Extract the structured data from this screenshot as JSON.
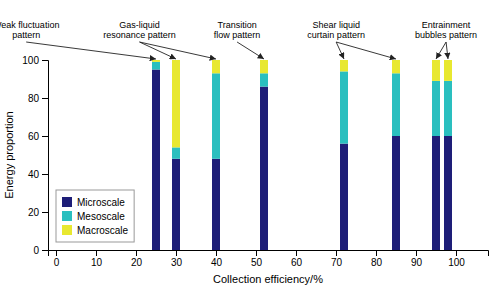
{
  "chart_data": {
    "type": "bar",
    "stacked": true,
    "x": [
      25,
      30,
      40,
      52,
      72,
      85,
      95,
      98
    ],
    "series": [
      {
        "name": "Microscale",
        "color": "#1e1e78",
        "values": [
          95,
          48,
          48,
          86,
          56,
          60,
          60,
          60
        ]
      },
      {
        "name": "Mesoscale",
        "color": "#2abfbf",
        "values": [
          4,
          6,
          45,
          7,
          38,
          33,
          29,
          29
        ]
      },
      {
        "name": "Macroscale",
        "color": "#e8e830",
        "values": [
          1,
          46,
          7,
          7,
          6,
          7,
          11,
          11
        ]
      }
    ],
    "xlabel": "Collection efficiency/%",
    "ylabel": "Energy proportion",
    "xlim": [
      -2,
      108
    ],
    "ylim": [
      0,
      100
    ],
    "xticks": [
      0,
      10,
      20,
      30,
      40,
      50,
      60,
      70,
      80,
      90,
      100
    ],
    "yticks": [
      0,
      20,
      40,
      60,
      80,
      100
    ],
    "grid": false,
    "legend": "lower left",
    "annotations": [
      {
        "text": "Weak fluctuation\npattern",
        "x": [
          25
        ]
      },
      {
        "text": "Gas-liquid\nresonance pattern",
        "x": [
          30,
          40
        ]
      },
      {
        "text": "Transition\nflow pattern",
        "x": [
          52
        ]
      },
      {
        "text": "Shear liquid\ncurtain pattern",
        "x": [
          72,
          85
        ]
      },
      {
        "text": "Entrainment\nbubbles pattern",
        "x": [
          95,
          98
        ]
      }
    ]
  }
}
